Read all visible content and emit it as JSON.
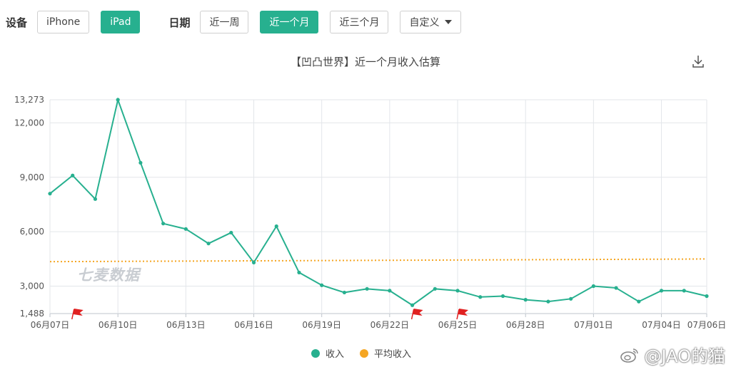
{
  "filters": {
    "device_label": "设备",
    "devices": [
      {
        "label": "iPhone",
        "active": false
      },
      {
        "label": "iPad",
        "active": true
      }
    ],
    "date_label": "日期",
    "ranges": [
      {
        "label": "近一周",
        "active": false
      },
      {
        "label": "近一个月",
        "active": true
      },
      {
        "label": "近三个月",
        "active": false
      }
    ],
    "custom_label": "自定义"
  },
  "watermark": "七麦数据",
  "weibo": "@JAO的猫",
  "colors": {
    "income": "#27b08f",
    "average": "#f5a623",
    "flag": "#e02020"
  },
  "chart_data": {
    "type": "line",
    "title": "【凹凸世界】近一个月收入估算",
    "x": [
      "06月07日",
      "06月08日",
      "06月09日",
      "06月10日",
      "06月11日",
      "06月12日",
      "06月13日",
      "06月14日",
      "06月15日",
      "06月16日",
      "06月17日",
      "06月18日",
      "06月19日",
      "06月20日",
      "06月21日",
      "06月22日",
      "06月23日",
      "06月24日",
      "06月25日",
      "06月26日",
      "06月27日",
      "06月28日",
      "06月29日",
      "06月30日",
      "07月01日",
      "07月02日",
      "07月03日",
      "07月04日",
      "07月05日",
      "07月06日"
    ],
    "xticks": [
      "06月07日",
      "06月10日",
      "06月13日",
      "06月16日",
      "06月19日",
      "06月22日",
      "06月25日",
      "06月28日",
      "07月01日",
      "07月04日",
      "07月06日"
    ],
    "yticks": [
      1488,
      3000,
      6000,
      9000,
      12000,
      13273
    ],
    "ytick_labels": [
      "1,488",
      "3,000",
      "6,000",
      "9,000",
      "12,000",
      "13,273"
    ],
    "ylim": [
      1488,
      13273
    ],
    "series": [
      {
        "name": "收入",
        "values": [
          8100,
          9100,
          7800,
          13273,
          9800,
          6450,
          6150,
          5350,
          5950,
          4300,
          6300,
          3750,
          3050,
          2650,
          2850,
          2750,
          1950,
          2850,
          2750,
          2400,
          2450,
          2250,
          2150,
          2300,
          3000,
          2900,
          2150,
          2750,
          2750,
          2450
        ]
      },
      {
        "name": "平均收入",
        "values": [
          4350,
          4355,
          4360,
          4365,
          4370,
          4375,
          4380,
          4385,
          4390,
          4395,
          4400,
          4405,
          4410,
          4415,
          4420,
          4425,
          4430,
          4435,
          4440,
          4445,
          4450,
          4455,
          4460,
          4465,
          4470,
          4475,
          4480,
          4485,
          4490,
          4500
        ]
      }
    ],
    "flags_at": [
      "06月08日",
      "06月23日",
      "06月25日"
    ],
    "grid": true,
    "legend": "bottom"
  }
}
